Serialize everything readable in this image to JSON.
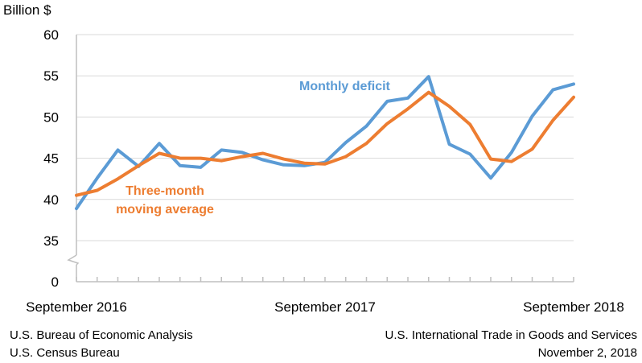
{
  "chart_data": {
    "type": "line",
    "ylabel": "Billion $",
    "ylim": [
      0,
      60
    ],
    "yticks": [
      0,
      35,
      40,
      45,
      50,
      55,
      60
    ],
    "axis_break": [
      0,
      35
    ],
    "x_tick_labels": [
      {
        "index": 0,
        "label": "September 2016"
      },
      {
        "index": 12,
        "label": "September 2017"
      },
      {
        "index": 24,
        "label": "September 2018"
      }
    ],
    "x": [
      "2016-09",
      "2016-10",
      "2016-11",
      "2016-12",
      "2017-01",
      "2017-02",
      "2017-03",
      "2017-04",
      "2017-05",
      "2017-06",
      "2017-07",
      "2017-08",
      "2017-09",
      "2017-10",
      "2017-11",
      "2017-12",
      "2018-01",
      "2018-02",
      "2018-03",
      "2018-04",
      "2018-05",
      "2018-06",
      "2018-07",
      "2018-08",
      "2018-09"
    ],
    "series": [
      {
        "name": "Monthly deficit",
        "color": "#5b9bd5",
        "values": [
          38.9,
          42.6,
          46.0,
          44.0,
          46.8,
          44.1,
          43.9,
          46.0,
          45.7,
          44.8,
          44.2,
          44.1,
          44.5,
          46.9,
          48.9,
          51.9,
          52.3,
          54.9,
          46.7,
          45.5,
          42.6,
          45.7,
          50.1,
          53.3,
          54.0
        ]
      },
      {
        "name": "Three-month moving average",
        "color": "#ed7d31",
        "values": [
          40.5,
          41.1,
          42.5,
          44.1,
          45.6,
          45.0,
          45.0,
          44.7,
          45.2,
          45.6,
          44.9,
          44.4,
          44.3,
          45.2,
          46.8,
          49.2,
          51.0,
          53.0,
          51.3,
          49.1,
          44.9,
          44.6,
          46.1,
          49.6,
          52.4
        ]
      }
    ],
    "annotations": [
      {
        "text": "Monthly deficit",
        "series": 0
      },
      {
        "text": "Three-month",
        "series": 1
      },
      {
        "text": "moving average",
        "series": 1
      }
    ]
  },
  "footer": {
    "source1": "U.S. Bureau of Economic Analysis",
    "source2": "U.S. Census Bureau",
    "release": "U.S. International Trade in Goods and Services",
    "date": "November 2, 2018"
  }
}
